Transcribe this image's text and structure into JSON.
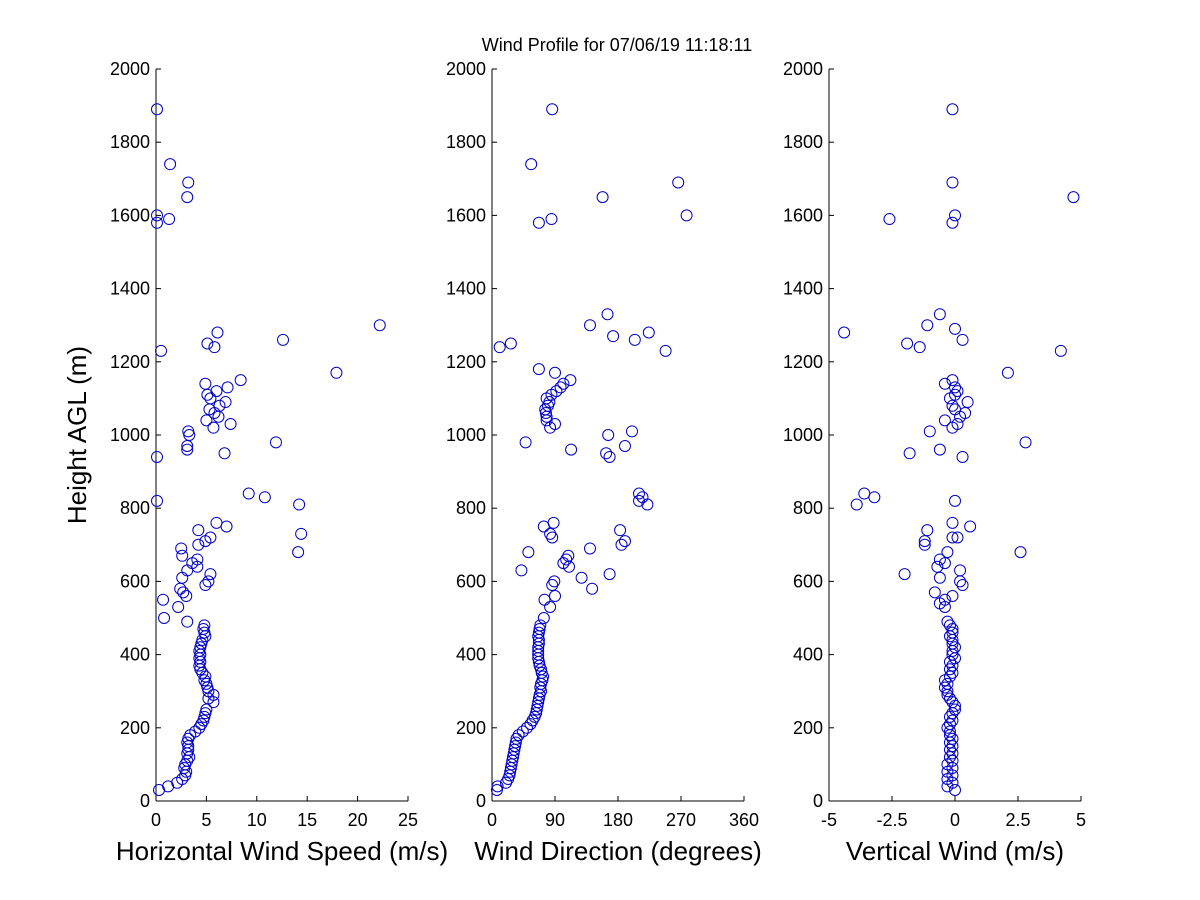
{
  "figure": {
    "title": "Wind Profile for  07/06/19 11:18:11",
    "ylabel": "Height AGL (m)",
    "marker_color": "#0000c8"
  },
  "chart_data": [
    {
      "type": "scatter",
      "xlabel": "Horizontal Wind Speed (m/s)",
      "ylabel": "Height AGL (m)",
      "xlim": [
        0,
        25
      ],
      "ylim": [
        0,
        2000
      ],
      "xticks": [
        "0",
        "5",
        "10",
        "15",
        "20",
        "25"
      ],
      "yticks": [
        "0",
        "200",
        "400",
        "600",
        "800",
        "1000",
        "1200",
        "1400",
        "1600",
        "1800",
        "2000"
      ],
      "grid": false,
      "points": [
        [
          0.3,
          30
        ],
        [
          1.2,
          40
        ],
        [
          2.1,
          50
        ],
        [
          2.6,
          60
        ],
        [
          2.9,
          70
        ],
        [
          3.0,
          80
        ],
        [
          2.8,
          90
        ],
        [
          2.9,
          100
        ],
        [
          3.1,
          110
        ],
        [
          3.3,
          120
        ],
        [
          3.1,
          130
        ],
        [
          3.2,
          140
        ],
        [
          3.2,
          150
        ],
        [
          3.1,
          160
        ],
        [
          3.2,
          170
        ],
        [
          3.4,
          180
        ],
        [
          3.9,
          190
        ],
        [
          4.3,
          200
        ],
        [
          4.5,
          210
        ],
        [
          4.7,
          220
        ],
        [
          4.8,
          230
        ],
        [
          4.9,
          240
        ],
        [
          5.0,
          250
        ],
        [
          5.7,
          270
        ],
        [
          5.2,
          280
        ],
        [
          5.7,
          290
        ],
        [
          5.2,
          300
        ],
        [
          5.1,
          310
        ],
        [
          5.0,
          320
        ],
        [
          4.8,
          330
        ],
        [
          4.9,
          340
        ],
        [
          4.6,
          350
        ],
        [
          4.4,
          360
        ],
        [
          4.3,
          370
        ],
        [
          4.4,
          380
        ],
        [
          4.3,
          390
        ],
        [
          4.4,
          400
        ],
        [
          4.3,
          410
        ],
        [
          4.4,
          420
        ],
        [
          4.5,
          430
        ],
        [
          4.6,
          440
        ],
        [
          4.9,
          450
        ],
        [
          4.8,
          460
        ],
        [
          4.7,
          470
        ],
        [
          4.8,
          480
        ],
        [
          3.1,
          490
        ],
        [
          0.8,
          500
        ],
        [
          2.2,
          530
        ],
        [
          0.7,
          550
        ],
        [
          3.0,
          560
        ],
        [
          2.7,
          570
        ],
        [
          2.4,
          580
        ],
        [
          4.9,
          590
        ],
        [
          5.2,
          600
        ],
        [
          2.6,
          610
        ],
        [
          5.4,
          620
        ],
        [
          3.1,
          630
        ],
        [
          4.1,
          640
        ],
        [
          3.6,
          650
        ],
        [
          4.1,
          660
        ],
        [
          2.6,
          670
        ],
        [
          14.1,
          680
        ],
        [
          2.5,
          690
        ],
        [
          4.2,
          700
        ],
        [
          4.9,
          710
        ],
        [
          5.4,
          720
        ],
        [
          14.4,
          730
        ],
        [
          4.2,
          740
        ],
        [
          7.0,
          750
        ],
        [
          6.0,
          760
        ],
        [
          14.2,
          810
        ],
        [
          0.1,
          820
        ],
        [
          10.8,
          830
        ],
        [
          9.2,
          840
        ],
        [
          0.1,
          940
        ],
        [
          6.8,
          950
        ],
        [
          3.1,
          960
        ],
        [
          3.1,
          970
        ],
        [
          11.9,
          980
        ],
        [
          3.3,
          1000
        ],
        [
          3.2,
          1010
        ],
        [
          5.7,
          1020
        ],
        [
          7.4,
          1030
        ],
        [
          5.0,
          1040
        ],
        [
          6.2,
          1050
        ],
        [
          5.8,
          1060
        ],
        [
          5.3,
          1070
        ],
        [
          6.3,
          1080
        ],
        [
          6.9,
          1090
        ],
        [
          5.4,
          1100
        ],
        [
          5.1,
          1110
        ],
        [
          6.0,
          1120
        ],
        [
          7.1,
          1130
        ],
        [
          4.9,
          1140
        ],
        [
          8.4,
          1150
        ],
        [
          17.9,
          1170
        ],
        [
          0.5,
          1230
        ],
        [
          5.8,
          1240
        ],
        [
          5.1,
          1250
        ],
        [
          12.6,
          1260
        ],
        [
          6.1,
          1280
        ],
        [
          22.2,
          1300
        ],
        [
          3.1,
          1650
        ],
        [
          3.2,
          1690
        ],
        [
          1.4,
          1740
        ],
        [
          1.3,
          1590
        ],
        [
          0.1,
          1580
        ],
        [
          0.1,
          1600
        ],
        [
          0.1,
          1890
        ]
      ]
    },
    {
      "type": "scatter",
      "xlabel": "Wind Direction (degrees)",
      "ylabel": "",
      "xlim": [
        0,
        360
      ],
      "ylim": [
        0,
        2000
      ],
      "xticks": [
        "0",
        "90",
        "180",
        "270",
        "360"
      ],
      "yticks": [
        "0",
        "200",
        "400",
        "600",
        "800",
        "1000",
        "1200",
        "1400",
        "1600",
        "1800",
        "2000"
      ],
      "grid": false,
      "points": [
        [
          7,
          30
        ],
        [
          8,
          40
        ],
        [
          20,
          50
        ],
        [
          23,
          60
        ],
        [
          25,
          70
        ],
        [
          26,
          80
        ],
        [
          27,
          90
        ],
        [
          28,
          100
        ],
        [
          29,
          110
        ],
        [
          30,
          120
        ],
        [
          31,
          130
        ],
        [
          32,
          140
        ],
        [
          33,
          150
        ],
        [
          34,
          160
        ],
        [
          35,
          170
        ],
        [
          38,
          180
        ],
        [
          44,
          190
        ],
        [
          50,
          200
        ],
        [
          55,
          210
        ],
        [
          58,
          220
        ],
        [
          61,
          230
        ],
        [
          63,
          240
        ],
        [
          64,
          250
        ],
        [
          65,
          260
        ],
        [
          66,
          270
        ],
        [
          67,
          280
        ],
        [
          68,
          290
        ],
        [
          70,
          300
        ],
        [
          69,
          310
        ],
        [
          70,
          320
        ],
        [
          72,
          330
        ],
        [
          73,
          340
        ],
        [
          71,
          350
        ],
        [
          70,
          360
        ],
        [
          68,
          370
        ],
        [
          67,
          380
        ],
        [
          66,
          390
        ],
        [
          66,
          400
        ],
        [
          66,
          410
        ],
        [
          66,
          420
        ],
        [
          67,
          430
        ],
        [
          67,
          440
        ],
        [
          66,
          450
        ],
        [
          67,
          460
        ],
        [
          68,
          470
        ],
        [
          69,
          480
        ],
        [
          74,
          500
        ],
        [
          83,
          530
        ],
        [
          75,
          550
        ],
        [
          90,
          560
        ],
        [
          143,
          580
        ],
        [
          86,
          590
        ],
        [
          89,
          600
        ],
        [
          128,
          610
        ],
        [
          168,
          620
        ],
        [
          42,
          630
        ],
        [
          110,
          640
        ],
        [
          102,
          650
        ],
        [
          106,
          660
        ],
        [
          109,
          670
        ],
        [
          52,
          680
        ],
        [
          140,
          690
        ],
        [
          185,
          700
        ],
        [
          190,
          710
        ],
        [
          86,
          720
        ],
        [
          83,
          730
        ],
        [
          183,
          740
        ],
        [
          74,
          750
        ],
        [
          88,
          760
        ],
        [
          222,
          810
        ],
        [
          210,
          820
        ],
        [
          215,
          830
        ],
        [
          210,
          840
        ],
        [
          163,
          950
        ],
        [
          168,
          940
        ],
        [
          113,
          960
        ],
        [
          190,
          970
        ],
        [
          48,
          980
        ],
        [
          166,
          1000
        ],
        [
          200,
          1010
        ],
        [
          83,
          1020
        ],
        [
          90,
          1030
        ],
        [
          78,
          1040
        ],
        [
          78,
          1050
        ],
        [
          77,
          1060
        ],
        [
          76,
          1070
        ],
        [
          80,
          1080
        ],
        [
          82,
          1090
        ],
        [
          78,
          1100
        ],
        [
          85,
          1110
        ],
        [
          92,
          1120
        ],
        [
          98,
          1130
        ],
        [
          102,
          1140
        ],
        [
          112,
          1150
        ],
        [
          90,
          1170
        ],
        [
          67,
          1180
        ],
        [
          248,
          1230
        ],
        [
          11,
          1240
        ],
        [
          27,
          1250
        ],
        [
          204,
          1260
        ],
        [
          173,
          1270
        ],
        [
          224,
          1280
        ],
        [
          140,
          1300
        ],
        [
          165,
          1330
        ],
        [
          158,
          1650
        ],
        [
          266,
          1690
        ],
        [
          56,
          1740
        ],
        [
          278,
          1600
        ],
        [
          85,
          1590
        ],
        [
          67,
          1580
        ],
        [
          86,
          1890
        ]
      ]
    },
    {
      "type": "scatter",
      "xlabel": "Vertical Wind (m/s)",
      "ylabel": "",
      "xlim": [
        -5,
        5
      ],
      "ylim": [
        0,
        2000
      ],
      "xticks": [
        "-5",
        "-2.5",
        "0",
        "2.5",
        "5"
      ],
      "yticks": [
        "0",
        "200",
        "400",
        "600",
        "800",
        "1000",
        "1200",
        "1400",
        "1600",
        "1800",
        "2000"
      ],
      "grid": false,
      "points": [
        [
          0.0,
          30
        ],
        [
          -0.3,
          40
        ],
        [
          -0.1,
          50
        ],
        [
          -0.3,
          60
        ],
        [
          -0.1,
          70
        ],
        [
          -0.3,
          80
        ],
        [
          -0.1,
          90
        ],
        [
          -0.3,
          100
        ],
        [
          -0.1,
          110
        ],
        [
          -0.2,
          120
        ],
        [
          -0.1,
          130
        ],
        [
          -0.2,
          140
        ],
        [
          -0.1,
          150
        ],
        [
          -0.2,
          160
        ],
        [
          -0.1,
          170
        ],
        [
          -0.2,
          180
        ],
        [
          -0.2,
          190
        ],
        [
          -0.3,
          200
        ],
        [
          -0.2,
          210
        ],
        [
          -0.1,
          220
        ],
        [
          -0.2,
          230
        ],
        [
          -0.1,
          240
        ],
        [
          0.0,
          250
        ],
        [
          0.0,
          260
        ],
        [
          -0.1,
          270
        ],
        [
          -0.2,
          280
        ],
        [
          -0.3,
          290
        ],
        [
          -0.3,
          300
        ],
        [
          -0.4,
          310
        ],
        [
          -0.3,
          320
        ],
        [
          -0.4,
          330
        ],
        [
          -0.2,
          340
        ],
        [
          -0.1,
          350
        ],
        [
          -0.2,
          360
        ],
        [
          -0.1,
          370
        ],
        [
          -0.2,
          380
        ],
        [
          0.0,
          390
        ],
        [
          -0.1,
          400
        ],
        [
          -0.1,
          410
        ],
        [
          0.0,
          420
        ],
        [
          -0.1,
          430
        ],
        [
          -0.1,
          440
        ],
        [
          -0.2,
          450
        ],
        [
          -0.1,
          460
        ],
        [
          -0.1,
          470
        ],
        [
          -0.2,
          480
        ],
        [
          -0.3,
          490
        ],
        [
          -0.4,
          530
        ],
        [
          -0.6,
          540
        ],
        [
          -0.4,
          550
        ],
        [
          -0.8,
          570
        ],
        [
          -0.1,
          560
        ],
        [
          0.3,
          590
        ],
        [
          0.2,
          600
        ],
        [
          -0.6,
          610
        ],
        [
          -2.0,
          620
        ],
        [
          0.2,
          630
        ],
        [
          -0.7,
          640
        ],
        [
          -0.4,
          650
        ],
        [
          -0.6,
          660
        ],
        [
          -0.3,
          680
        ],
        [
          2.6,
          680
        ],
        [
          -1.2,
          700
        ],
        [
          -1.2,
          710
        ],
        [
          -0.1,
          720
        ],
        [
          0.1,
          720
        ],
        [
          -1.1,
          740
        ],
        [
          0.6,
          750
        ],
        [
          -0.1,
          760
        ],
        [
          -3.9,
          810
        ],
        [
          0.0,
          820
        ],
        [
          -3.2,
          830
        ],
        [
          -3.6,
          840
        ],
        [
          -1.8,
          950
        ],
        [
          -0.6,
          960
        ],
        [
          0.3,
          940
        ],
        [
          2.8,
          980
        ],
        [
          -0.1,
          1020
        ],
        [
          -1.0,
          1010
        ],
        [
          0.1,
          1030
        ],
        [
          -0.4,
          1040
        ],
        [
          0.2,
          1050
        ],
        [
          0.4,
          1060
        ],
        [
          0.0,
          1070
        ],
        [
          -0.1,
          1080
        ],
        [
          0.5,
          1090
        ],
        [
          -0.2,
          1100
        ],
        [
          0.0,
          1110
        ],
        [
          0.1,
          1120
        ],
        [
          0.0,
          1130
        ],
        [
          -0.4,
          1140
        ],
        [
          -0.1,
          1150
        ],
        [
          2.1,
          1170
        ],
        [
          4.2,
          1230
        ],
        [
          -1.4,
          1240
        ],
        [
          -1.9,
          1250
        ],
        [
          0.3,
          1260
        ],
        [
          0.0,
          1290
        ],
        [
          -4.4,
          1280
        ],
        [
          -1.1,
          1300
        ],
        [
          -0.6,
          1330
        ],
        [
          4.7,
          1650
        ],
        [
          -0.1,
          1690
        ],
        [
          -2.6,
          1590
        ],
        [
          0.0,
          1600
        ],
        [
          -0.1,
          1580
        ],
        [
          -0.1,
          1890
        ]
      ]
    }
  ]
}
